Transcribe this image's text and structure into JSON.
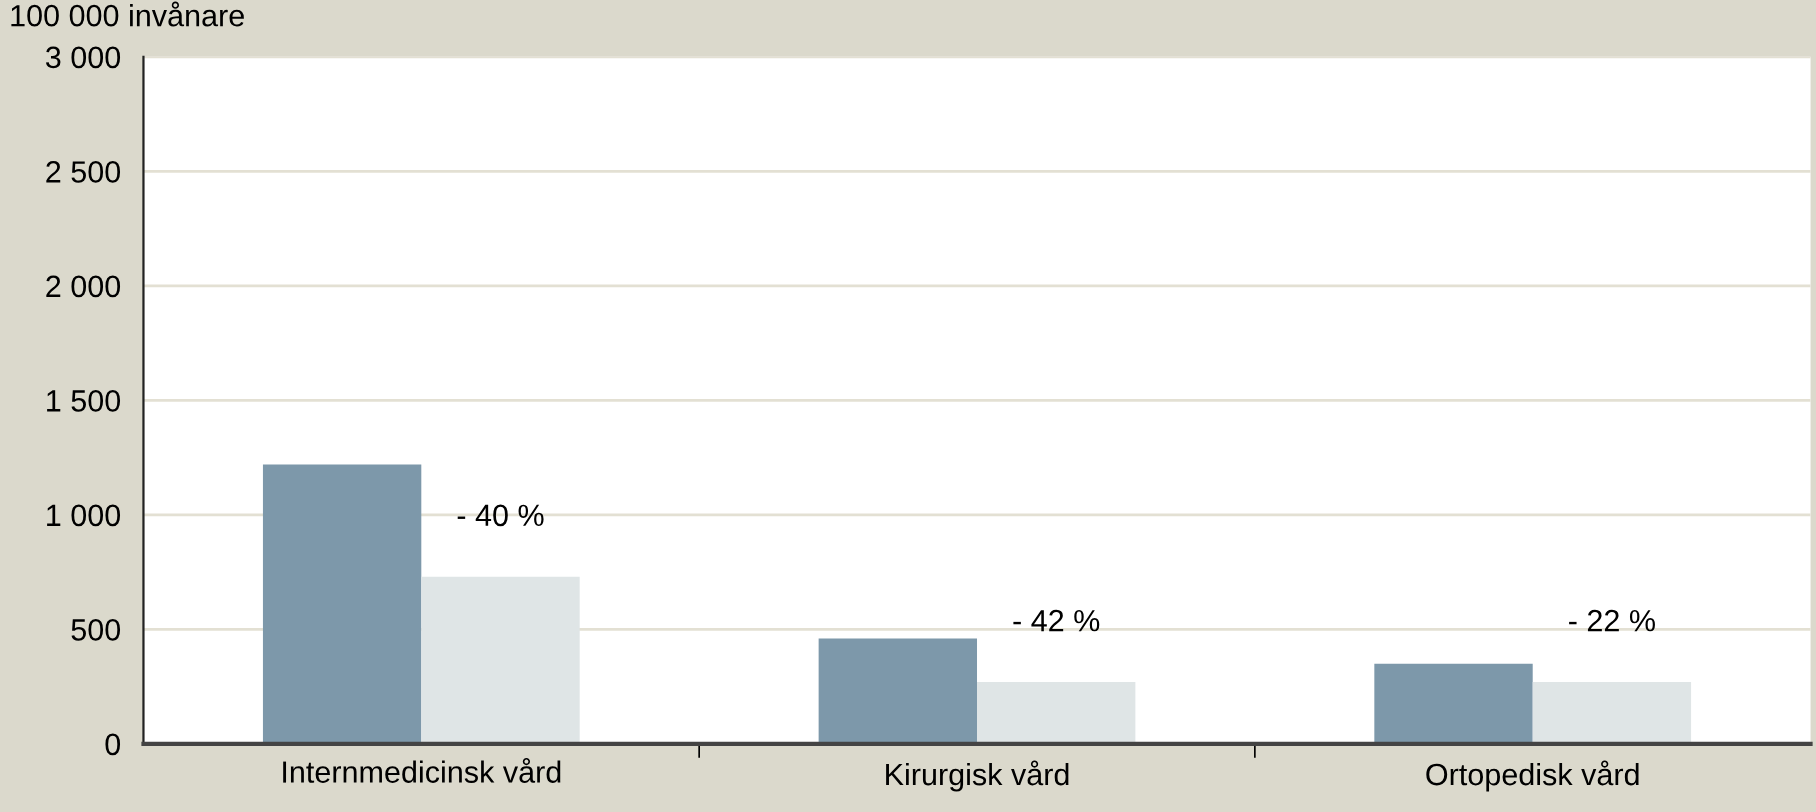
{
  "chart_data": {
    "type": "bar",
    "ylabel": "100 000 invånare",
    "categories": [
      "Internmedicinsk vård",
      "Kirurgisk vård",
      "Ortopedisk vård"
    ],
    "series": [
      {
        "color": "#7d98aa",
        "values": [
          1220,
          460,
          350
        ]
      },
      {
        "color": "#dfe5e6",
        "values": [
          730,
          270,
          270
        ]
      }
    ],
    "ylim": [
      0,
      3000
    ],
    "yticks": [
      0,
      500,
      {
        "value": 1000,
        "label": "1 000"
      },
      {
        "value": 1500,
        "label": "1 500"
      },
      {
        "value": 2000,
        "label": "2 000"
      },
      {
        "value": 2500,
        "label": "2 500"
      },
      {
        "value": 3000,
        "label": "3 000"
      }
    ],
    "grid": "y",
    "legend": false,
    "annotations": [
      "- 40 %",
      "- 42 %",
      "- 22 %"
    ]
  }
}
